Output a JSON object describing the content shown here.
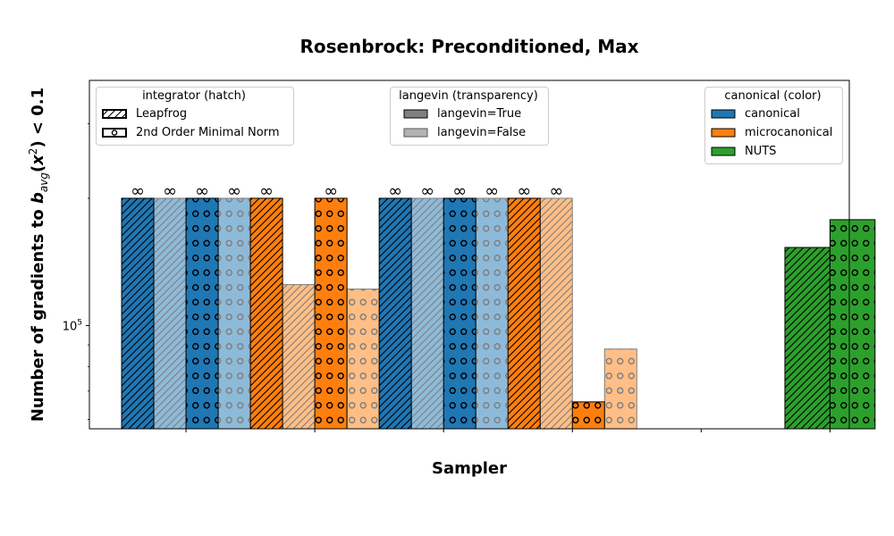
{
  "chart_data": {
    "type": "bar",
    "title": "Rosenbrock: Preconditioned, Max",
    "xlabel": "Sampler",
    "ylabel": {
      "prefix": "Number of gradients to ",
      "b": "b",
      "avg": "avg",
      "x": "x",
      "two": "2",
      "suffix": ") < 0.1"
    },
    "yscale": "log",
    "ylim": [
      57000,
      380000
    ],
    "ytick_label": {
      "base": "10",
      "exp": "5"
    },
    "ytick_value": 100000,
    "infinity_symbol": "∞",
    "infinity_bar_value": 200000,
    "groups": 6,
    "group_ticks": [
      0,
      1,
      2,
      3,
      4,
      5
    ],
    "bars": [
      {
        "group": 0,
        "offset": -0.375,
        "color": "canonical",
        "hatch": "leapfrog",
        "langevin": true,
        "value": null
      },
      {
        "group": 0,
        "offset": -0.125,
        "color": "canonical",
        "hatch": "leapfrog",
        "langevin": false,
        "value": null
      },
      {
        "group": 0,
        "offset": 0.125,
        "color": "canonical",
        "hatch": "minimal",
        "langevin": true,
        "value": null
      },
      {
        "group": 0,
        "offset": 0.375,
        "color": "canonical",
        "hatch": "minimal",
        "langevin": false,
        "value": null
      },
      {
        "group": 1,
        "offset": -0.375,
        "color": "microcanonical",
        "hatch": "leapfrog",
        "langevin": true,
        "value": null
      },
      {
        "group": 1,
        "offset": -0.125,
        "color": "microcanonical",
        "hatch": "leapfrog",
        "langevin": false,
        "value": 125000
      },
      {
        "group": 1,
        "offset": 0.125,
        "color": "microcanonical",
        "hatch": "minimal",
        "langevin": true,
        "value": null
      },
      {
        "group": 1,
        "offset": 0.375,
        "color": "microcanonical",
        "hatch": "minimal",
        "langevin": false,
        "value": 122000
      },
      {
        "group": 2,
        "offset": -0.375,
        "color": "canonical",
        "hatch": "leapfrog",
        "langevin": true,
        "value": null
      },
      {
        "group": 2,
        "offset": -0.125,
        "color": "canonical",
        "hatch": "leapfrog",
        "langevin": false,
        "value": null
      },
      {
        "group": 2,
        "offset": 0.125,
        "color": "canonical",
        "hatch": "minimal",
        "langevin": true,
        "value": null
      },
      {
        "group": 2,
        "offset": 0.375,
        "color": "canonical",
        "hatch": "minimal",
        "langevin": false,
        "value": null
      },
      {
        "group": 3,
        "offset": -0.375,
        "color": "microcanonical",
        "hatch": "leapfrog",
        "langevin": true,
        "value": null
      },
      {
        "group": 3,
        "offset": -0.125,
        "color": "microcanonical",
        "hatch": "leapfrog",
        "langevin": false,
        "value": null
      },
      {
        "group": 3,
        "offset": 0.125,
        "color": "microcanonical",
        "hatch": "minimal",
        "langevin": true,
        "value": 66000
      },
      {
        "group": 3,
        "offset": 0.375,
        "color": "microcanonical",
        "hatch": "minimal",
        "langevin": false,
        "value": 88000
      },
      {
        "group": 5,
        "offset": -0.175,
        "color": "NUTS",
        "hatch": "leapfrog",
        "langevin": true,
        "value": 153000,
        "width": 0.35
      },
      {
        "group": 5,
        "offset": 0.175,
        "color": "NUTS",
        "hatch": "minimal",
        "langevin": true,
        "value": 178000,
        "width": 0.35
      }
    ],
    "colors": {
      "canonical": "#1f77b4",
      "microcanonical": "#ff7f0e",
      "NUTS": "#2ca02c"
    },
    "legends": {
      "integrator": {
        "title": "integrator (hatch)",
        "entries": [
          {
            "label": "Leapfrog",
            "hatch": "leapfrog"
          },
          {
            "label": "2nd Order Minimal Norm",
            "hatch": "minimal"
          }
        ],
        "placement": "top-left"
      },
      "langevin": {
        "title": "langevin (transparency)",
        "entries": [
          {
            "label": "langevin=True",
            "color": "#808080"
          },
          {
            "label": "langevin=False",
            "color": "#b3b3b3"
          }
        ],
        "placement": "top-center"
      },
      "canonical": {
        "title": "canonical (color)",
        "entries": [
          {
            "label": "canonical",
            "color": "#1f77b4"
          },
          {
            "label": "microcanonical",
            "color": "#ff7f0e"
          },
          {
            "label": "NUTS",
            "color": "#2ca02c"
          }
        ],
        "placement": "top-right"
      }
    }
  }
}
